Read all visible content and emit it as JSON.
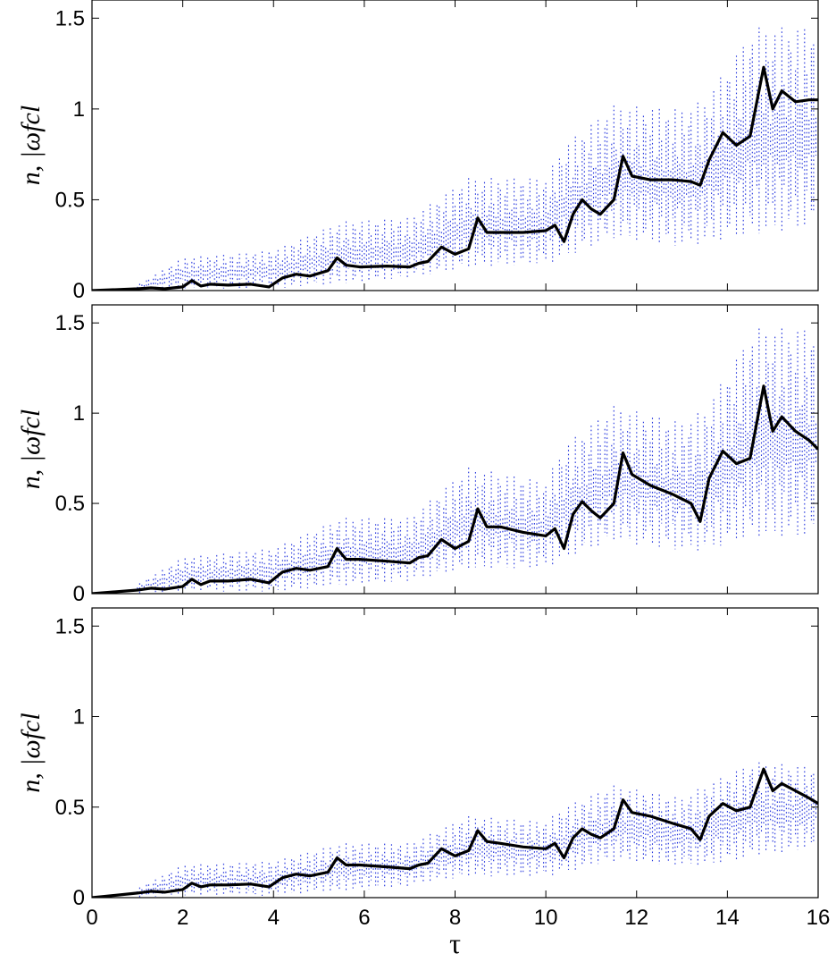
{
  "chart_data": [
    {
      "type": "line",
      "ylabel": "n, |ωfcl",
      "xlim": [
        0,
        16
      ],
      "ylim": [
        0,
        1.6
      ],
      "xticks": [
        0,
        2,
        4,
        6,
        8,
        10,
        12,
        14,
        16
      ],
      "yticks": [
        0,
        0.5,
        1,
        1.5
      ],
      "x_tick_labels_visible": false,
      "series": [
        {
          "style": "solid-black",
          "x": [
            0,
            1,
            1.3,
            1.6,
            2.0,
            2.2,
            2.4,
            2.6,
            3.0,
            3.5,
            3.9,
            4.2,
            4.5,
            4.8,
            5.2,
            5.4,
            5.6,
            5.9,
            6.5,
            7.0,
            7.2,
            7.4,
            7.7,
            8.0,
            8.3,
            8.5,
            8.7,
            9.0,
            9.5,
            10.0,
            10.2,
            10.4,
            10.6,
            10.8,
            11.0,
            11.2,
            11.5,
            11.7,
            11.9,
            12.3,
            12.8,
            13.2,
            13.4,
            13.6,
            13.9,
            14.2,
            14.5,
            14.8,
            15.0,
            15.2,
            15.5,
            15.8,
            16.0
          ],
          "y": [
            0,
            0.01,
            0.015,
            0.01,
            0.02,
            0.055,
            0.025,
            0.035,
            0.03,
            0.035,
            0.02,
            0.07,
            0.09,
            0.08,
            0.11,
            0.18,
            0.14,
            0.13,
            0.135,
            0.13,
            0.15,
            0.16,
            0.24,
            0.2,
            0.23,
            0.4,
            0.32,
            0.32,
            0.32,
            0.33,
            0.36,
            0.27,
            0.42,
            0.5,
            0.45,
            0.42,
            0.5,
            0.74,
            0.63,
            0.61,
            0.61,
            0.6,
            0.58,
            0.72,
            0.87,
            0.8,
            0.85,
            1.23,
            1.0,
            1.1,
            1.04,
            1.05,
            1.05
          ]
        },
        {
          "style": "dotted-blue",
          "x": [
            1,
            2,
            4,
            5.5,
            7,
            8.3,
            10,
            10.4,
            11.5,
            13,
            13.5,
            14.6,
            16
          ],
          "y_upper": [
            0.03,
            0.18,
            0.22,
            0.38,
            0.4,
            0.62,
            0.62,
            0.8,
            1.02,
            1.0,
            1.05,
            1.45,
            1.45
          ],
          "y_lower": [
            0,
            0,
            0,
            0.02,
            0.05,
            0.1,
            0.12,
            0.15,
            0.25,
            0.2,
            0.22,
            0.25,
            0.3
          ]
        }
      ]
    },
    {
      "type": "line",
      "ylabel": "n, |ωfcl",
      "xlim": [
        0,
        16
      ],
      "ylim": [
        0,
        1.6
      ],
      "xticks": [
        0,
        2,
        4,
        6,
        8,
        10,
        12,
        14,
        16
      ],
      "yticks": [
        0,
        0.5,
        1,
        1.5
      ],
      "x_tick_labels_visible": false,
      "series": [
        {
          "style": "solid-black",
          "x": [
            0,
            1,
            1.3,
            1.6,
            2.0,
            2.2,
            2.4,
            2.6,
            3.0,
            3.5,
            3.9,
            4.2,
            4.5,
            4.8,
            5.2,
            5.4,
            5.6,
            5.9,
            6.5,
            7.0,
            7.2,
            7.4,
            7.7,
            8.0,
            8.3,
            8.5,
            8.7,
            9.0,
            9.5,
            10.0,
            10.2,
            10.4,
            10.6,
            10.8,
            11.0,
            11.2,
            11.5,
            11.7,
            11.9,
            12.3,
            12.8,
            13.2,
            13.4,
            13.6,
            13.9,
            14.2,
            14.5,
            14.8,
            15.0,
            15.2,
            15.5,
            15.8,
            16.0
          ],
          "y": [
            0,
            0.02,
            0.03,
            0.025,
            0.04,
            0.08,
            0.05,
            0.07,
            0.07,
            0.08,
            0.06,
            0.12,
            0.14,
            0.13,
            0.15,
            0.25,
            0.19,
            0.19,
            0.18,
            0.17,
            0.2,
            0.21,
            0.3,
            0.25,
            0.29,
            0.47,
            0.37,
            0.37,
            0.34,
            0.32,
            0.36,
            0.25,
            0.44,
            0.51,
            0.46,
            0.42,
            0.5,
            0.78,
            0.66,
            0.6,
            0.55,
            0.5,
            0.4,
            0.64,
            0.79,
            0.72,
            0.75,
            1.15,
            0.9,
            0.98,
            0.9,
            0.85,
            0.8
          ]
        },
        {
          "style": "dotted-blue",
          "x": [
            1,
            2,
            4,
            5.5,
            7,
            8.3,
            10,
            10.4,
            11.5,
            13,
            13.5,
            14.6,
            16
          ],
          "y_upper": [
            0.05,
            0.2,
            0.25,
            0.42,
            0.42,
            0.7,
            0.62,
            0.82,
            1.04,
            0.95,
            1.02,
            1.47,
            1.47
          ],
          "y_lower": [
            0,
            0,
            0,
            0.02,
            0.05,
            0.1,
            0.12,
            0.15,
            0.25,
            0.2,
            0.2,
            0.25,
            0.25
          ]
        }
      ]
    },
    {
      "type": "line",
      "ylabel": "n, |ωfcl",
      "xlabel": "τ",
      "xlim": [
        0,
        16
      ],
      "ylim": [
        0,
        1.6
      ],
      "xticks": [
        0,
        2,
        4,
        6,
        8,
        10,
        12,
        14,
        16
      ],
      "yticks": [
        0,
        0.5,
        1,
        1.5
      ],
      "x_tick_labels_visible": true,
      "series": [
        {
          "style": "solid-black",
          "x": [
            0,
            1,
            1.3,
            1.6,
            2.0,
            2.2,
            2.4,
            2.6,
            3.0,
            3.5,
            3.9,
            4.2,
            4.5,
            4.8,
            5.2,
            5.4,
            5.6,
            5.9,
            6.5,
            7.0,
            7.2,
            7.4,
            7.7,
            8.0,
            8.3,
            8.5,
            8.7,
            9.0,
            9.5,
            10.0,
            10.2,
            10.4,
            10.6,
            10.8,
            11.0,
            11.2,
            11.5,
            11.7,
            11.9,
            12.3,
            12.8,
            13.2,
            13.4,
            13.6,
            13.9,
            14.2,
            14.5,
            14.8,
            15.0,
            15.2,
            15.5,
            15.8,
            16.0
          ],
          "y": [
            0,
            0.025,
            0.035,
            0.03,
            0.045,
            0.08,
            0.06,
            0.07,
            0.07,
            0.075,
            0.06,
            0.11,
            0.13,
            0.12,
            0.14,
            0.22,
            0.18,
            0.18,
            0.17,
            0.16,
            0.18,
            0.19,
            0.27,
            0.23,
            0.26,
            0.37,
            0.31,
            0.3,
            0.28,
            0.27,
            0.3,
            0.22,
            0.33,
            0.38,
            0.35,
            0.33,
            0.38,
            0.54,
            0.47,
            0.45,
            0.41,
            0.38,
            0.32,
            0.45,
            0.52,
            0.48,
            0.5,
            0.71,
            0.59,
            0.63,
            0.59,
            0.55,
            0.52
          ]
        },
        {
          "style": "dotted-blue",
          "x": [
            1,
            2,
            4,
            5.5,
            7,
            8.3,
            10,
            10.4,
            11.5,
            13,
            13.5,
            14.6,
            16
          ],
          "y_upper": [
            0.05,
            0.18,
            0.2,
            0.3,
            0.3,
            0.45,
            0.42,
            0.5,
            0.62,
            0.55,
            0.62,
            0.75,
            0.72
          ],
          "y_lower": [
            0,
            0,
            0,
            0.02,
            0.05,
            0.1,
            0.1,
            0.12,
            0.18,
            0.15,
            0.15,
            0.2,
            0.25
          ]
        }
      ]
    }
  ]
}
